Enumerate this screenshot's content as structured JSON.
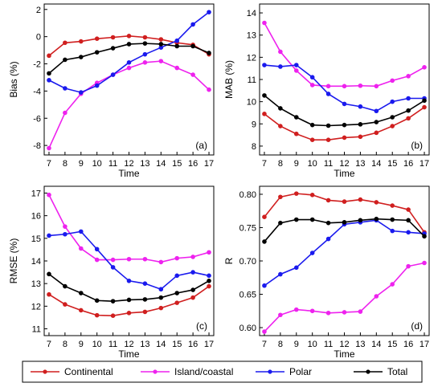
{
  "legend": [
    {
      "name": "Continental",
      "color": "#d01f1f"
    },
    {
      "name": "Island/coastal",
      "color": "#ee22ee"
    },
    {
      "name": "Polar",
      "color": "#1a1aee"
    },
    {
      "name": "Total",
      "color": "#000000"
    }
  ],
  "chart_data": [
    {
      "type": "line",
      "panel_label": "(a)",
      "xlabel": "Time",
      "ylabel": "Bias (%)",
      "x": [
        7,
        8,
        9,
        10,
        11,
        12,
        13,
        14,
        15,
        16,
        17
      ],
      "xlim": [
        6.7,
        17.3
      ],
      "ylim": [
        -8.7,
        2.4
      ],
      "yticks": [
        -8,
        -6,
        -4,
        -2,
        0,
        2
      ],
      "series": [
        {
          "name": "Continental",
          "values": [
            -1.4,
            -0.45,
            -0.35,
            -0.15,
            -0.05,
            0.05,
            -0.05,
            -0.2,
            -0.45,
            -0.6,
            -1.3
          ]
        },
        {
          "name": "Island/coastal",
          "values": [
            -8.2,
            -5.6,
            -4.2,
            -3.4,
            -2.8,
            -2.3,
            -1.9,
            -1.8,
            -2.3,
            -2.8,
            -3.9
          ]
        },
        {
          "name": "Polar",
          "values": [
            -3.2,
            -3.8,
            -4.1,
            -3.6,
            -2.8,
            -1.9,
            -1.3,
            -0.8,
            -0.3,
            0.9,
            1.8
          ]
        },
        {
          "name": "Total",
          "values": [
            -2.7,
            -1.7,
            -1.5,
            -1.15,
            -0.85,
            -0.55,
            -0.5,
            -0.55,
            -0.7,
            -0.7,
            -1.2
          ]
        }
      ]
    },
    {
      "type": "line",
      "panel_label": "(b)",
      "xlabel": "Time",
      "ylabel": "MAB (%)",
      "x": [
        7,
        8,
        9,
        10,
        11,
        12,
        13,
        14,
        15,
        16,
        17
      ],
      "xlim": [
        6.7,
        17.3
      ],
      "ylim": [
        7.6,
        14.4
      ],
      "yticks": [
        8,
        9,
        10,
        11,
        12,
        13,
        14
      ],
      "series": [
        {
          "name": "Continental",
          "values": [
            9.45,
            8.9,
            8.55,
            8.28,
            8.28,
            8.38,
            8.42,
            8.6,
            8.9,
            9.25,
            9.75
          ]
        },
        {
          "name": "Island/coastal",
          "values": [
            13.55,
            12.25,
            11.4,
            10.75,
            10.7,
            10.7,
            10.72,
            10.7,
            10.95,
            11.15,
            11.55
          ]
        },
        {
          "name": "Polar",
          "values": [
            11.65,
            11.58,
            11.65,
            11.1,
            10.35,
            9.9,
            9.78,
            9.58,
            10.0,
            10.15,
            10.15
          ]
        },
        {
          "name": "Total",
          "values": [
            10.28,
            9.7,
            9.3,
            8.95,
            8.92,
            8.95,
            8.98,
            9.08,
            9.3,
            9.6,
            10.05
          ]
        }
      ]
    },
    {
      "type": "line",
      "panel_label": "(c)",
      "xlabel": "Time",
      "ylabel": "RMSE (%)",
      "x": [
        7,
        8,
        9,
        10,
        11,
        12,
        13,
        14,
        15,
        16,
        17
      ],
      "xlim": [
        6.7,
        17.3
      ],
      "ylim": [
        10.7,
        17.3
      ],
      "yticks": [
        11,
        12,
        13,
        14,
        15,
        16,
        17
      ],
      "series": [
        {
          "name": "Continental",
          "values": [
            12.52,
            12.08,
            11.82,
            11.6,
            11.58,
            11.7,
            11.75,
            11.92,
            12.15,
            12.38,
            12.88
          ]
        },
        {
          "name": "Island/coastal",
          "values": [
            16.92,
            15.52,
            14.55,
            14.05,
            14.05,
            14.08,
            14.08,
            13.95,
            14.12,
            14.18,
            14.38
          ]
        },
        {
          "name": "Polar",
          "values": [
            15.12,
            15.18,
            15.3,
            14.52,
            13.72,
            13.12,
            13.0,
            12.75,
            13.35,
            13.5,
            13.35
          ]
        },
        {
          "name": "Total",
          "values": [
            13.42,
            12.88,
            12.58,
            12.25,
            12.22,
            12.28,
            12.3,
            12.38,
            12.58,
            12.72,
            13.12
          ]
        }
      ]
    },
    {
      "type": "line",
      "panel_label": "(d)",
      "xlabel": "Time",
      "ylabel": "R",
      "x": [
        7,
        8,
        9,
        10,
        11,
        12,
        13,
        14,
        15,
        16,
        17
      ],
      "xlim": [
        6.7,
        17.3
      ],
      "ylim": [
        0.588,
        0.812
      ],
      "yticks": [
        0.6,
        0.65,
        0.7,
        0.75,
        0.8
      ],
      "ytick_labels": [
        "0.60",
        "0.65",
        "0.70",
        "0.75",
        "0.80"
      ],
      "series": [
        {
          "name": "Continental",
          "values": [
            0.766,
            0.796,
            0.801,
            0.799,
            0.791,
            0.789,
            0.792,
            0.788,
            0.783,
            0.777,
            0.743
          ]
        },
        {
          "name": "Island/coastal",
          "values": [
            0.594,
            0.619,
            0.627,
            0.625,
            0.622,
            0.623,
            0.624,
            0.647,
            0.665,
            0.692,
            0.697
          ]
        },
        {
          "name": "Polar",
          "values": [
            0.663,
            0.68,
            0.69,
            0.712,
            0.733,
            0.755,
            0.758,
            0.761,
            0.745,
            0.743,
            0.741
          ]
        },
        {
          "name": "Total",
          "values": [
            0.729,
            0.757,
            0.762,
            0.762,
            0.757,
            0.758,
            0.761,
            0.763,
            0.762,
            0.761,
            0.737
          ]
        }
      ]
    }
  ]
}
